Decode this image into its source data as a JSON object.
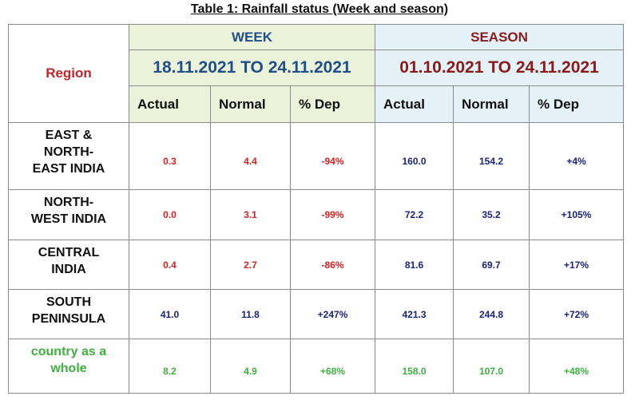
{
  "caption": "Table 1: Rainfall status (Week and season)",
  "header": {
    "region": "Region",
    "week": {
      "label": "WEEK",
      "period": "18.11.2021 TO 24.11.2021"
    },
    "season": {
      "label": "SEASON",
      "period": "01.10.2021 TO 24.11.2021"
    },
    "columns": [
      "Actual",
      "Normal",
      "% Dep",
      "Actual",
      "Normal",
      "% Dep"
    ]
  },
  "colors": {
    "week_values": "#e01e1e",
    "season_values": "#1a237e",
    "country_row": "#3fb13e",
    "region_header": "#c0272d"
  },
  "rows": [
    {
      "region": "EAST & NORTH- EAST INDIA",
      "week": [
        "0.3",
        "4.4",
        "-94%"
      ],
      "season": [
        "160.0",
        "154.2",
        "+4%"
      ]
    },
    {
      "region": "NORTH- WEST INDIA",
      "week": [
        "0.0",
        "3.1",
        "-99%"
      ],
      "season": [
        "72.2",
        "35.2",
        "+105%"
      ]
    },
    {
      "region": "CENTRAL INDIA",
      "week": [
        "0.4",
        "2.7",
        "-86%"
      ],
      "season": [
        "81.6",
        "69.7",
        "+17%"
      ]
    },
    {
      "region": "SOUTH PENINSULA",
      "week": [
        "41.0",
        "11.8",
        "+247%"
      ],
      "season": [
        "421.3",
        "244.8",
        "+72%"
      ]
    },
    {
      "region": "country as a whole",
      "week": [
        "8.2",
        "4.9",
        "+68%"
      ],
      "season": [
        "158.0",
        "107.0",
        "+48%"
      ]
    }
  ]
}
